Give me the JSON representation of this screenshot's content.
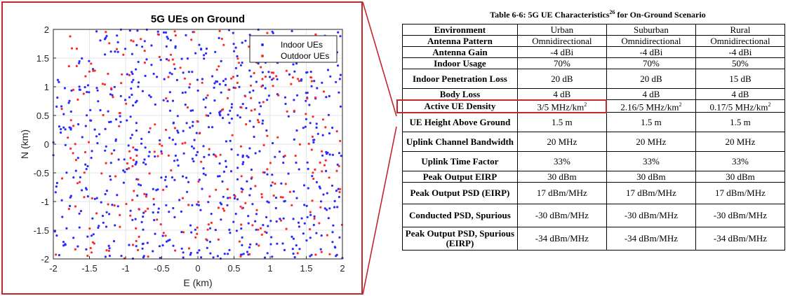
{
  "chart_data": {
    "type": "scatter",
    "title": "5G UEs on Ground",
    "xlabel": "E (km)",
    "ylabel": "N (km)",
    "xlim": [
      -2,
      2
    ],
    "ylim": [
      -2,
      2
    ],
    "xticks": [
      "-2",
      "-1.5",
      "-1",
      "-0.5",
      "0",
      "0.5",
      "1",
      "1.5",
      "2"
    ],
    "yticks": [
      "2",
      "1.5",
      "1",
      "0.5",
      "0",
      "-0.5",
      "-1",
      "-1.5",
      "-2"
    ],
    "grid": true,
    "legend_position": "top-right",
    "series": [
      {
        "name": "Indoor UEs",
        "color": "#2b2bff",
        "count": 700,
        "seed": 12345
      },
      {
        "name": "Outdoor UEs",
        "color": "#ff2b2b",
        "count": 300,
        "seed": 67890
      }
    ]
  },
  "table": {
    "caption": "Table 6-6: 5G UE Characteristics",
    "caption_ref": "26",
    "caption_suffix": "for On-Ground Scenario",
    "columns": [
      "Environment",
      "Urban",
      "Suburban",
      "Rural"
    ],
    "rows": [
      {
        "label": "Antenna Pattern",
        "values": [
          "Omnidirectional",
          "Omnidirectional",
          "Omnidirectional"
        ]
      },
      {
        "label": "Antenna Gain",
        "values": [
          "-4 dBi",
          "-4 dBi",
          "-4 dBi"
        ]
      },
      {
        "label": "Indoor Usage",
        "values": [
          "70%",
          "70%",
          "50%"
        ]
      },
      {
        "label": "Indoor Penetration Loss",
        "values": [
          "20 dB",
          "20 dB",
          "15 dB"
        ]
      },
      {
        "label": "Body Loss",
        "values": [
          "4 dB",
          "4 dB",
          "4 dB"
        ]
      },
      {
        "label": "Active UE Density",
        "values": [
          "3/5 MHz/km",
          "2.16/5 MHz/km",
          "0.17/5 MHz/km"
        ],
        "superscript": "2",
        "highlighted": true
      },
      {
        "label": "UE Height Above Ground",
        "values": [
          "1.5 m",
          "1.5 m",
          "1.5 m"
        ]
      },
      {
        "label": "Uplink Channel Bandwidth",
        "values": [
          "20 MHz",
          "20 MHz",
          "20 MHz"
        ]
      },
      {
        "label": "Uplink Time Factor",
        "values": [
          "33%",
          "33%",
          "33%"
        ]
      },
      {
        "label": "Peak Output EIRP",
        "values": [
          "30 dBm",
          "30 dBm",
          "30 dBm"
        ]
      },
      {
        "label": "Peak Output PSD (EIRP)",
        "values": [
          "17 dBm/MHz",
          "17 dBm/MHz",
          "17 dBm/MHz"
        ]
      },
      {
        "label": "Conducted PSD, Spurious",
        "values": [
          "-30 dBm/MHz",
          "-30 dBm/MHz",
          "-30 dBm/MHz"
        ]
      },
      {
        "label": "Peak Output PSD, Spurious (EIRP)",
        "values": [
          "-34 dBm/MHz",
          "-34 dBm/MHz",
          "-34 dBm/MHz"
        ]
      }
    ]
  },
  "colors": {
    "highlight": "#c0282c"
  }
}
